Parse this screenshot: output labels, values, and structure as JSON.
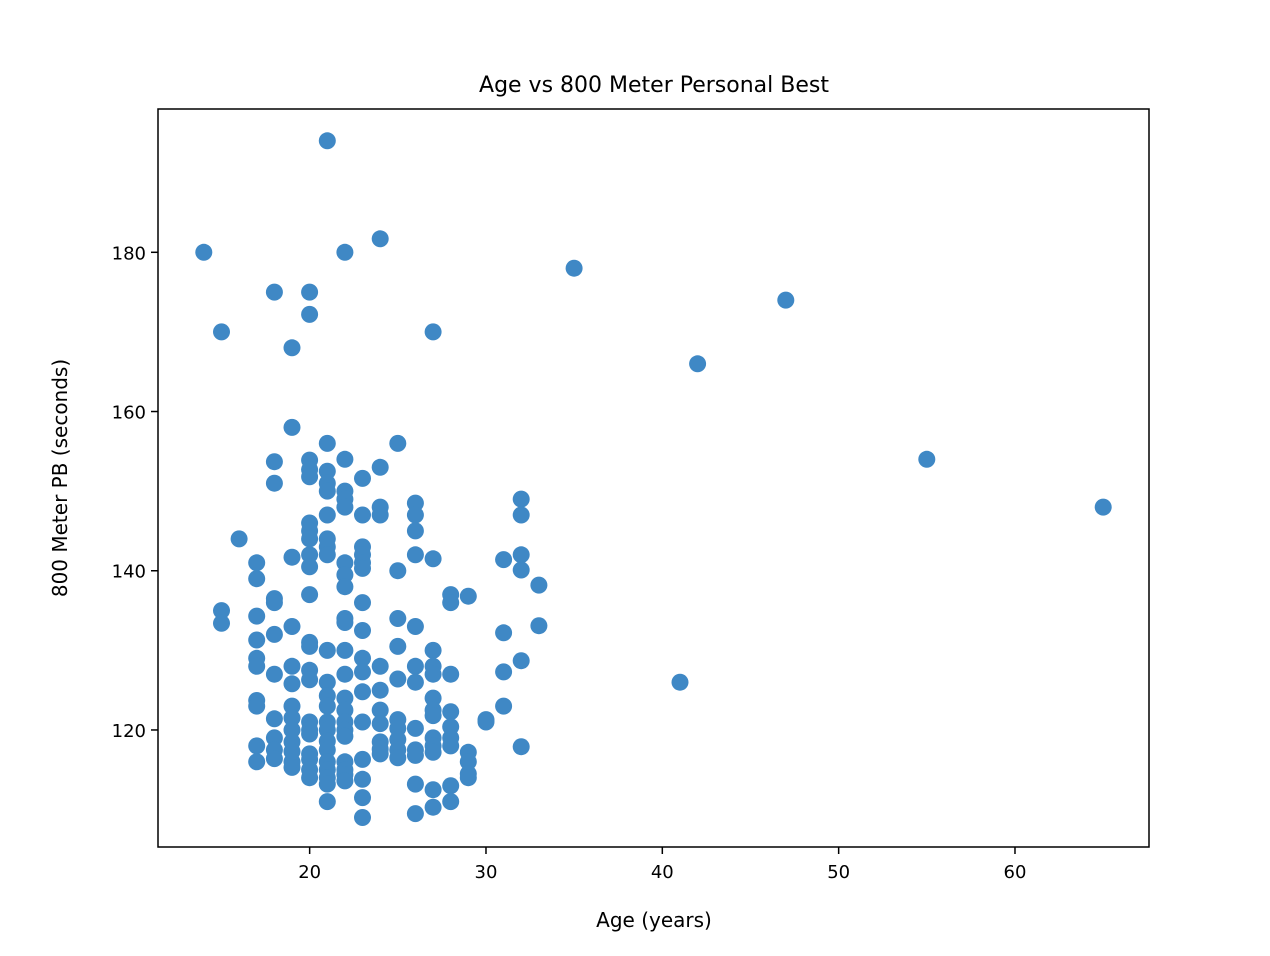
{
  "chart_data": {
    "type": "scatter",
    "title": "Age vs 800 Meter Personal Best",
    "xlabel": "Age (years)",
    "ylabel": "800 Meter PB (seconds)",
    "xlim": [
      11.4,
      67.6
    ],
    "ylim": [
      105.3,
      198.0
    ],
    "xticks": [
      20,
      30,
      40,
      50,
      60
    ],
    "yticks": [
      120,
      140,
      160,
      180
    ],
    "grid": false,
    "marker_color": "#3f88c5",
    "points": [
      [
        14,
        180
      ],
      [
        15,
        170
      ],
      [
        15,
        135
      ],
      [
        15,
        133.4
      ],
      [
        16,
        144
      ],
      [
        17,
        141
      ],
      [
        17,
        139
      ],
      [
        17,
        134.3
      ],
      [
        17,
        131.3
      ],
      [
        17,
        129
      ],
      [
        17,
        128
      ],
      [
        17,
        123.7
      ],
      [
        17,
        123
      ],
      [
        17,
        118
      ],
      [
        17,
        116
      ],
      [
        18,
        175
      ],
      [
        18,
        153.7
      ],
      [
        18,
        151
      ],
      [
        18,
        136.5
      ],
      [
        18,
        136
      ],
      [
        18,
        132
      ],
      [
        18,
        127
      ],
      [
        18,
        121.4
      ],
      [
        18,
        119
      ],
      [
        18,
        117.5
      ],
      [
        18,
        116.4
      ],
      [
        19,
        168
      ],
      [
        19,
        158
      ],
      [
        19,
        141.7
      ],
      [
        19,
        133
      ],
      [
        19,
        128
      ],
      [
        19,
        125.8
      ],
      [
        19,
        123
      ],
      [
        19,
        121.5
      ],
      [
        19,
        120
      ],
      [
        19,
        118.5
      ],
      [
        19,
        117.3
      ],
      [
        19,
        116
      ],
      [
        19,
        115.3
      ],
      [
        20,
        175
      ],
      [
        20,
        172.2
      ],
      [
        20,
        153.9
      ],
      [
        20,
        152.7
      ],
      [
        20,
        151.8
      ],
      [
        20,
        146
      ],
      [
        20,
        145
      ],
      [
        20,
        144
      ],
      [
        20,
        142
      ],
      [
        20,
        140.5
      ],
      [
        20,
        137
      ],
      [
        20,
        131
      ],
      [
        20,
        130.5
      ],
      [
        20,
        127.5
      ],
      [
        20,
        126.3
      ],
      [
        20,
        121
      ],
      [
        20,
        120
      ],
      [
        20,
        119.5
      ],
      [
        20,
        117
      ],
      [
        20,
        116.3
      ],
      [
        20,
        115
      ],
      [
        20,
        114
      ],
      [
        21,
        194
      ],
      [
        21,
        156
      ],
      [
        21,
        152.5
      ],
      [
        21,
        151
      ],
      [
        21,
        150
      ],
      [
        21,
        147
      ],
      [
        21,
        144
      ],
      [
        21,
        143
      ],
      [
        21,
        142
      ],
      [
        21,
        130
      ],
      [
        21,
        126
      ],
      [
        21,
        124.3
      ],
      [
        21,
        123
      ],
      [
        21,
        121
      ],
      [
        21,
        120
      ],
      [
        21,
        118.6
      ],
      [
        21,
        117.5
      ],
      [
        21,
        116
      ],
      [
        21,
        115
      ],
      [
        21,
        114
      ],
      [
        21,
        113.2
      ],
      [
        21,
        111
      ],
      [
        22,
        180
      ],
      [
        22,
        154
      ],
      [
        22,
        150
      ],
      [
        22,
        149
      ],
      [
        22,
        148
      ],
      [
        22,
        141
      ],
      [
        22,
        139.5
      ],
      [
        22,
        138
      ],
      [
        22,
        134
      ],
      [
        22,
        133.5
      ],
      [
        22,
        130
      ],
      [
        22,
        127
      ],
      [
        22,
        124
      ],
      [
        22,
        122.5
      ],
      [
        22,
        121
      ],
      [
        22,
        120
      ],
      [
        22,
        119.2
      ],
      [
        22,
        116
      ],
      [
        22,
        115
      ],
      [
        22,
        114.4
      ],
      [
        22,
        113.6
      ],
      [
        23,
        151.6
      ],
      [
        23,
        147
      ],
      [
        23,
        143
      ],
      [
        23,
        142
      ],
      [
        23,
        141
      ],
      [
        23,
        140.3
      ],
      [
        23,
        136
      ],
      [
        23,
        132.5
      ],
      [
        23,
        129
      ],
      [
        23,
        127.3
      ],
      [
        23,
        124.8
      ],
      [
        23,
        121
      ],
      [
        23,
        116.3
      ],
      [
        23,
        113.8
      ],
      [
        23,
        111.5
      ],
      [
        23,
        109
      ],
      [
        24,
        181.7
      ],
      [
        24,
        153
      ],
      [
        24,
        148
      ],
      [
        24,
        147
      ],
      [
        24,
        128
      ],
      [
        24,
        125
      ],
      [
        24,
        122.5
      ],
      [
        24,
        120.8
      ],
      [
        24,
        118.5
      ],
      [
        24,
        117.6
      ],
      [
        24,
        117
      ],
      [
        25,
        156
      ],
      [
        25,
        140
      ],
      [
        25,
        134
      ],
      [
        25,
        130.5
      ],
      [
        25,
        126.4
      ],
      [
        25,
        121.3
      ],
      [
        25,
        120.2
      ],
      [
        25,
        118.8
      ],
      [
        25,
        117.5
      ],
      [
        25,
        116.5
      ],
      [
        26,
        148.5
      ],
      [
        26,
        147
      ],
      [
        26,
        145
      ],
      [
        26,
        142
      ],
      [
        26,
        133
      ],
      [
        26,
        128
      ],
      [
        26,
        126
      ],
      [
        26,
        120.2
      ],
      [
        26,
        117.5
      ],
      [
        26,
        116.8
      ],
      [
        26,
        113.2
      ],
      [
        26,
        109.5
      ],
      [
        27,
        170
      ],
      [
        27,
        141.5
      ],
      [
        27,
        130
      ],
      [
        27,
        128
      ],
      [
        27,
        127
      ],
      [
        27,
        124
      ],
      [
        27,
        122.5
      ],
      [
        27,
        121.8
      ],
      [
        27,
        119
      ],
      [
        27,
        118
      ],
      [
        27,
        117.2
      ],
      [
        27,
        112.5
      ],
      [
        27,
        110.3
      ],
      [
        28,
        137
      ],
      [
        28,
        136
      ],
      [
        28,
        127
      ],
      [
        28,
        122.3
      ],
      [
        28,
        120.4
      ],
      [
        28,
        119
      ],
      [
        28,
        118
      ],
      [
        28,
        113
      ],
      [
        28,
        111
      ],
      [
        29,
        136.8
      ],
      [
        29,
        117.2
      ],
      [
        29,
        116
      ],
      [
        29,
        114.5
      ],
      [
        29,
        114
      ],
      [
        30,
        121.3
      ],
      [
        30,
        121
      ],
      [
        31,
        141.4
      ],
      [
        31,
        132.2
      ],
      [
        31,
        127.3
      ],
      [
        31,
        123
      ],
      [
        32,
        149
      ],
      [
        32,
        147
      ],
      [
        32,
        142
      ],
      [
        32,
        140.1
      ],
      [
        32,
        128.7
      ],
      [
        32,
        117.9
      ],
      [
        33,
        138.2
      ],
      [
        33,
        133.1
      ],
      [
        35,
        178
      ],
      [
        41,
        126
      ],
      [
        42,
        166
      ],
      [
        47,
        174
      ],
      [
        55,
        154
      ],
      [
        65,
        148
      ]
    ]
  }
}
